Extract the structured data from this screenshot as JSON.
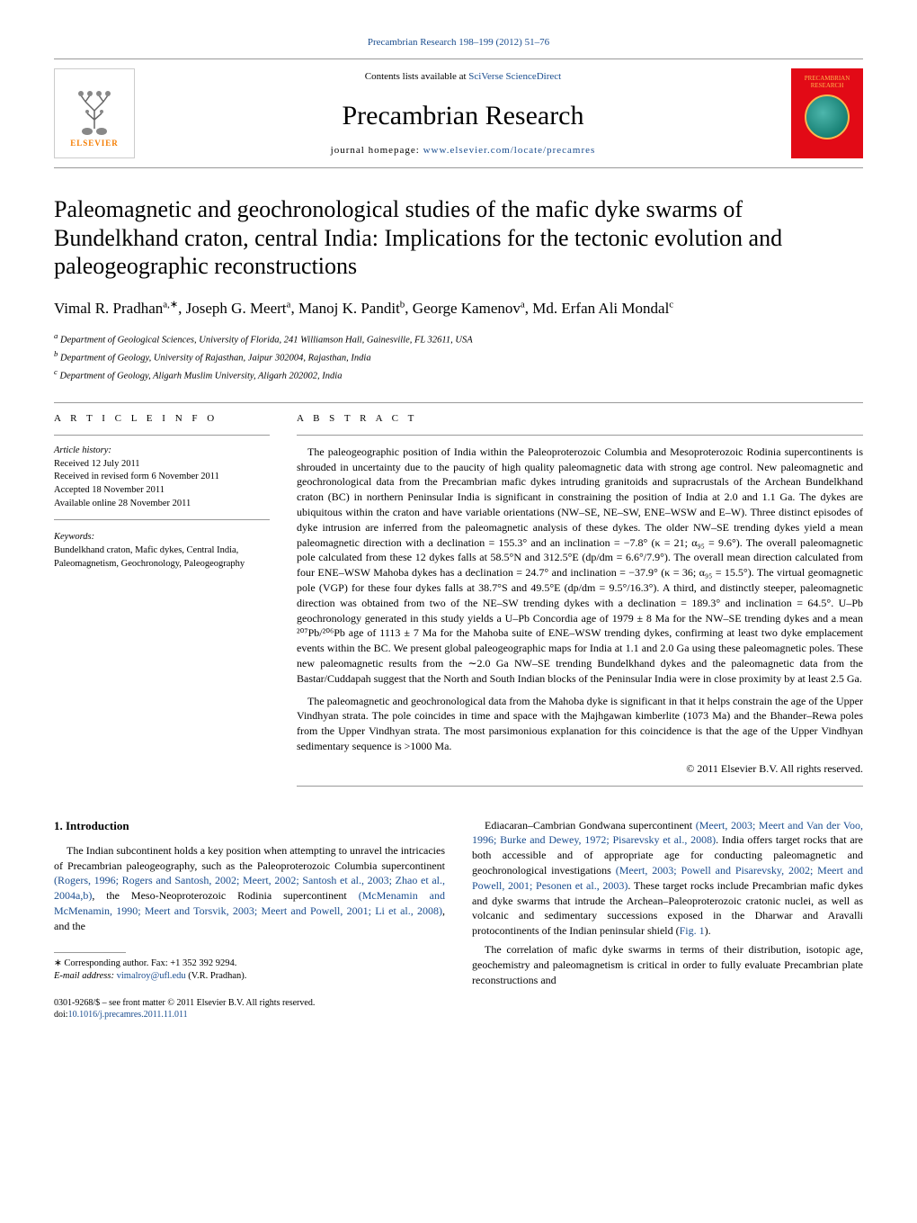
{
  "header": {
    "citation": "Precambrian Research 198–199 (2012) 51–76",
    "contents_prefix": "Contents lists available at ",
    "contents_link": "SciVerse ScienceDirect",
    "journal_title": "Precambrian Research",
    "homepage_prefix": "journal homepage: ",
    "homepage_link": "www.elsevier.com/locate/precamres",
    "publisher_name": "ELSEVIER",
    "cover_text": "PRECAMBRIAN RESEARCH"
  },
  "article": {
    "title": "Paleomagnetic and geochronological studies of the mafic dyke swarms of Bundelkhand craton, central India: Implications for the tectonic evolution and paleogeographic reconstructions",
    "authors_html": "Vimal R. Pradhan<sup>a,∗</sup>, Joseph G. Meert<sup>a</sup>, Manoj K. Pandit<sup>b</sup>, George Kamenov<sup>a</sup>, Md. Erfan Ali Mondal<sup>c</sup>",
    "affiliations": [
      "a Department of Geological Sciences, University of Florida, 241 Williamson Hall, Gainesville, FL 32611, USA",
      "b Department of Geology, University of Rajasthan, Jaipur 302004, Rajasthan, India",
      "c Department of Geology, Aligarh Muslim University, Aligarh 202002, India"
    ]
  },
  "info": {
    "heading": "A R T I C L E   I N F O",
    "history_label": "Article history:",
    "received": "Received 12 July 2011",
    "revised": "Received in revised form 6 November 2011",
    "accepted": "Accepted 18 November 2011",
    "online": "Available online 28 November 2011",
    "keywords_label": "Keywords:",
    "keywords": "Bundelkhand craton, Mafic dykes, Central India, Paleomagnetism, Geochronology, Paleogeography"
  },
  "abstract": {
    "heading": "A B S T R A C T",
    "p1": "The paleogeographic position of India within the Paleoproterozoic Columbia and Mesoproterozoic Rodinia supercontinents is shrouded in uncertainty due to the paucity of high quality paleomagnetic data with strong age control. New paleomagnetic and geochronological data from the Precambrian mafic dykes intruding granitoids and supracrustals of the Archean Bundelkhand craton (BC) in northern Peninsular India is significant in constraining the position of India at 2.0 and 1.1 Ga. The dykes are ubiquitous within the craton and have variable orientations (NW–SE, NE–SW, ENE–WSW and E–W). Three distinct episodes of dyke intrusion are inferred from the paleomagnetic analysis of these dykes. The older NW–SE trending dykes yield a mean paleomagnetic direction with a declination = 155.3° and an inclination = −7.8° (κ = 21; α₉₅ = 9.6°). The overall paleomagnetic pole calculated from these 12 dykes falls at 58.5°N and 312.5°E (dp/dm = 6.6°/7.9°). The overall mean direction calculated from four ENE–WSW Mahoba dykes has a declination = 24.7° and inclination = −37.9° (κ = 36; α₉₅ = 15.5°). The virtual geomagnetic pole (VGP) for these four dykes falls at 38.7°S and 49.5°E (dp/dm = 9.5°/16.3°). A third, and distinctly steeper, paleomagnetic direction was obtained from two of the NE–SW trending dykes with a declination = 189.3° and inclination = 64.5°. U–Pb geochronology generated in this study yields a U–Pb Concordia age of 1979 ± 8 Ma for the NW–SE trending dykes and a mean ²⁰⁷Pb/²⁰⁶Pb age of 1113 ± 7 Ma for the Mahoba suite of ENE–WSW trending dykes, confirming at least two dyke emplacement events within the BC. We present global paleogeographic maps for India at 1.1 and 2.0 Ga using these paleomagnetic poles. These new paleomagnetic results from the ∼2.0 Ga NW–SE trending Bundelkhand dykes and the paleomagnetic data from the Bastar/Cuddapah suggest that the North and South Indian blocks of the Peninsular India were in close proximity by at least 2.5 Ga.",
    "p2": "The paleomagnetic and geochronological data from the Mahoba dyke is significant in that it helps constrain the age of the Upper Vindhyan strata. The pole coincides in time and space with the Majhgawan kimberlite (1073 Ma) and the Bhander–Rewa poles from the Upper Vindhyan strata. The most parsimonious explanation for this coincidence is that the age of the Upper Vindhyan sedimentary sequence is >1000 Ma.",
    "copyright": "© 2011 Elsevier B.V. All rights reserved."
  },
  "body": {
    "section_num": "1.",
    "section_title": "Introduction",
    "col1_p1_pre": "The Indian subcontinent holds a key position when attempting to unravel the intricacies of Precambrian paleogeography, such as the Paleoproterozoic Columbia supercontinent ",
    "col1_ref1": "(Rogers, 1996; Rogers and Santosh, 2002; Meert, 2002; Santosh et al., 2003; Zhao et al., 2004a,b)",
    "col1_p1_mid": ", the Meso-Neoproterozoic Rodinia supercontinent ",
    "col1_ref2": "(McMenamin and McMenamin, 1990; Meert and Torsvik, 2003; Meert and Powell, 2001; Li et al., 2008)",
    "col1_p1_post": ", and the",
    "col2_p1_pre": "Ediacaran–Cambrian Gondwana supercontinent ",
    "col2_ref1": "(Meert, 2003; Meert and Van der Voo, 1996; Burke and Dewey, 1972; Pisarevsky et al., 2008)",
    "col2_p1_mid": ". India offers target rocks that are both accessible and of appropriate age for conducting paleomagnetic and geochronological investigations ",
    "col2_ref2": "(Meert, 2003; Powell and Pisarevsky, 2002; Meert and Powell, 2001; Pesonen et al., 2003)",
    "col2_p1_post": ". These target rocks include Precambrian mafic dykes and dyke swarms that intrude the Archean–Paleoproterozoic cratonic nuclei, as well as volcanic and sedimentary successions exposed in the Dharwar and Aravalli protocontinents of the Indian peninsular shield (",
    "col2_ref3": "Fig. 1",
    "col2_p1_end": ").",
    "col2_p2": "The correlation of mafic dyke swarms in terms of their distribution, isotopic age, geochemistry and paleomagnetism is critical in order to fully evaluate Precambrian plate reconstructions and"
  },
  "footnotes": {
    "corr": "∗ Corresponding author. Fax: +1 352 392 9294.",
    "email_label": "E-mail address: ",
    "email": "vimalroy@ufl.edu",
    "email_name": " (V.R. Pradhan)."
  },
  "bottom": {
    "issn": "0301-9268/$ – see front matter © 2011 Elsevier B.V. All rights reserved.",
    "doi_label": "doi:",
    "doi": "10.1016/j.precamres.2011.11.011"
  },
  "colors": {
    "link": "#1a4d8f",
    "elsevier_orange": "#f57c00",
    "cover_red": "#e20a16"
  }
}
